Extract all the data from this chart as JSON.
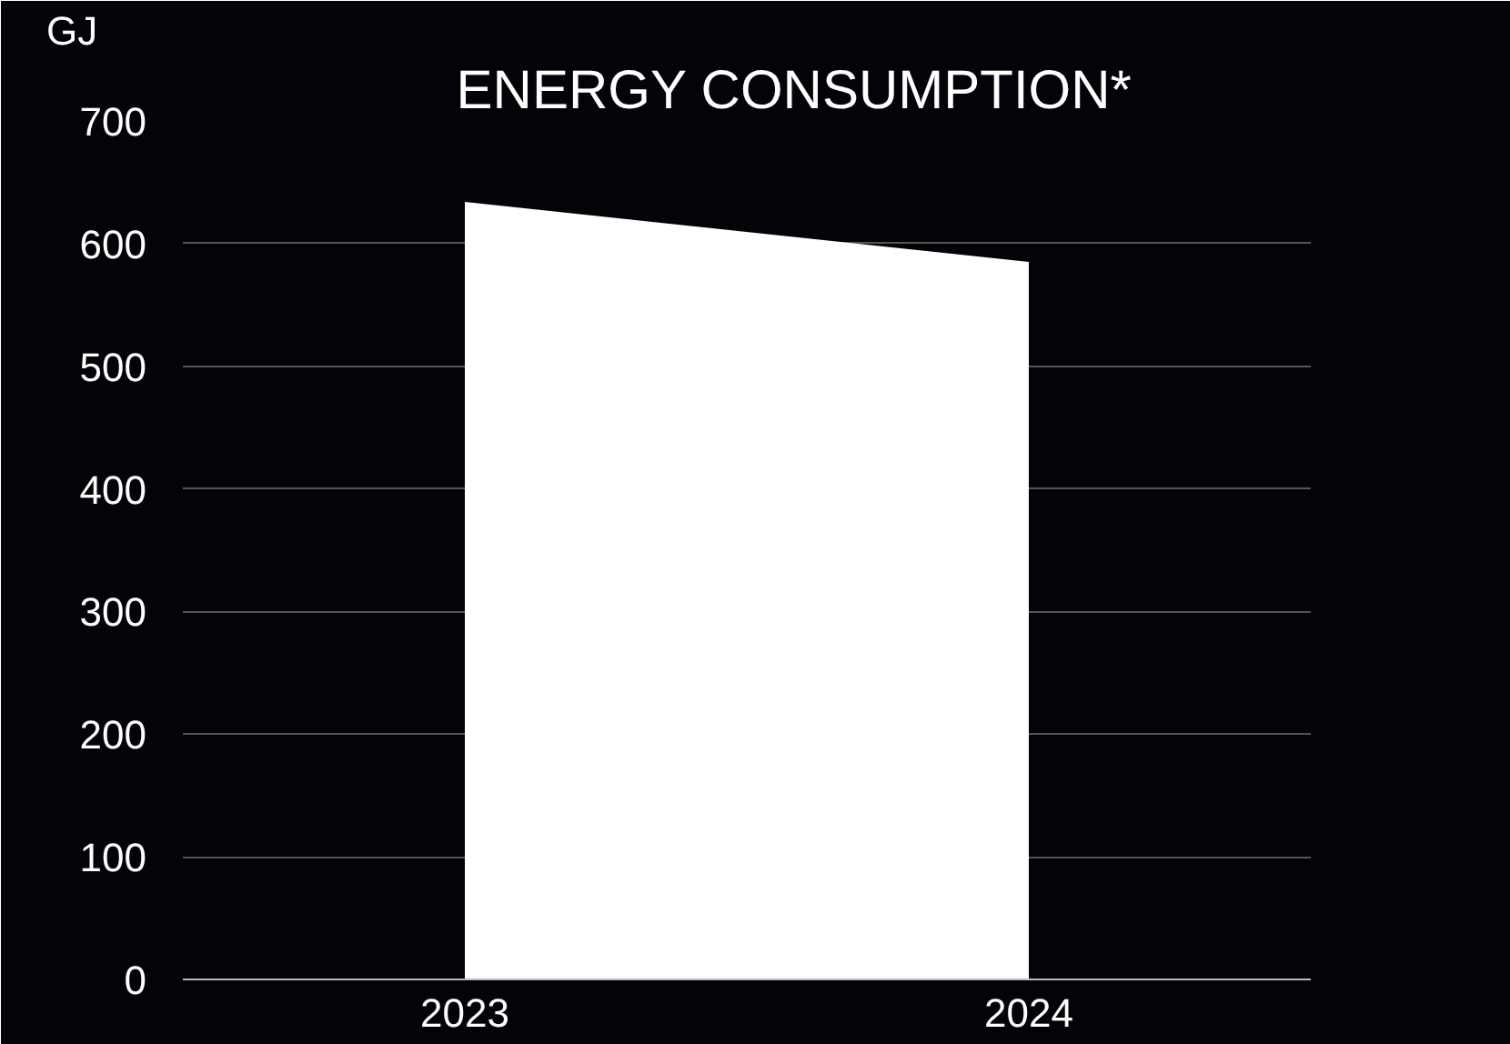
{
  "chart_data": {
    "type": "area",
    "title": "ENERGY CONSUMPTION*",
    "ylabel": "GJ",
    "x": [
      2023,
      2024
    ],
    "series": [
      {
        "color": "#ffffff",
        "values": [
          634,
          585
        ]
      }
    ],
    "xlim": [
      2022.5,
      2024.5
    ],
    "xticks": [
      2023,
      2024
    ],
    "ylim": [
      0,
      700
    ],
    "yticks": [
      0,
      100,
      200,
      300,
      400,
      500,
      600,
      700
    ],
    "grid": "y"
  }
}
